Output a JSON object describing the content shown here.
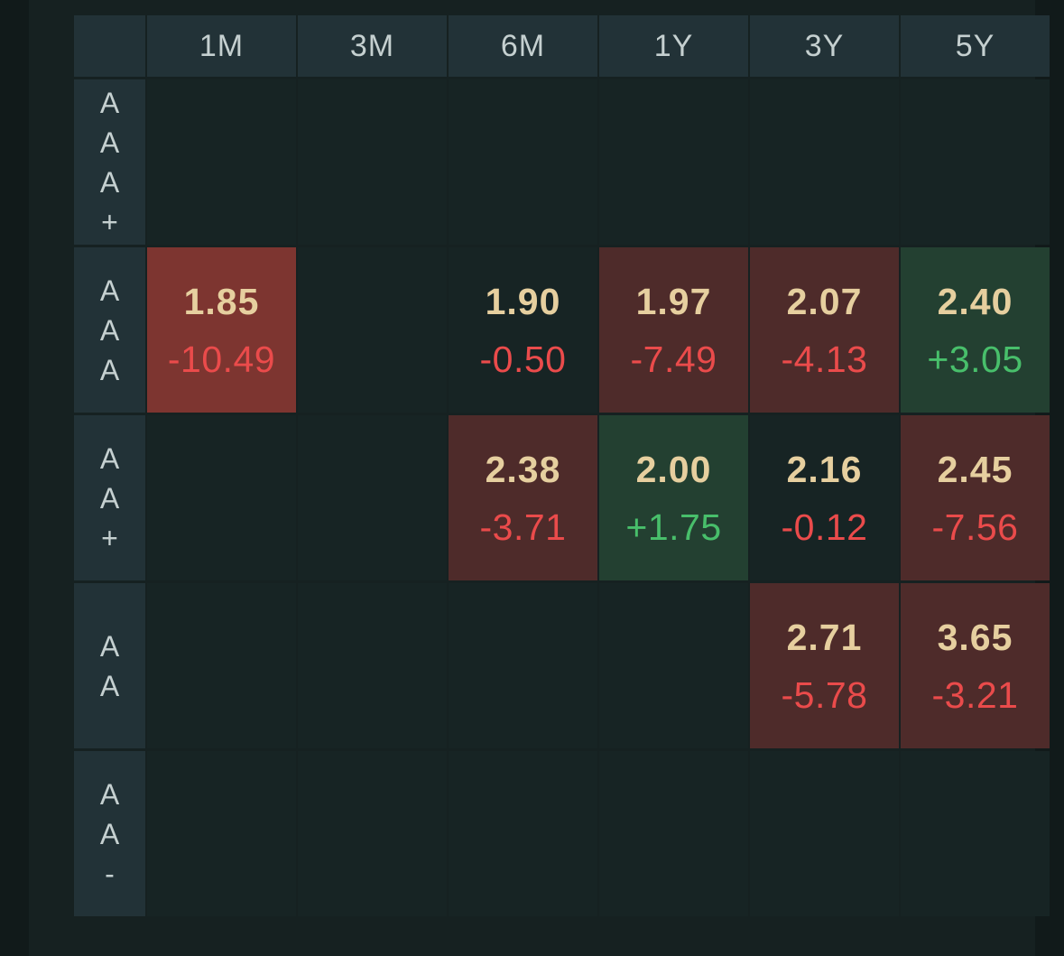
{
  "columns": [
    "1M",
    "3M",
    "6M",
    "1Y",
    "3Y",
    "5Y"
  ],
  "rows": [
    {
      "rating": "AAA+",
      "cells": [
        null,
        null,
        null,
        null,
        null,
        null
      ]
    },
    {
      "rating": "AAA",
      "cells": [
        {
          "value": "1.85",
          "change": "-10.49",
          "tone": "red-strong"
        },
        null,
        {
          "value": "1.90",
          "change": "-0.50",
          "tone": "neutral"
        },
        {
          "value": "1.97",
          "change": "-7.49",
          "tone": "red"
        },
        {
          "value": "2.07",
          "change": "-4.13",
          "tone": "red"
        },
        {
          "value": "2.40",
          "change": "+3.05",
          "tone": "green"
        }
      ]
    },
    {
      "rating": "AA+",
      "cells": [
        null,
        null,
        {
          "value": "2.38",
          "change": "-3.71",
          "tone": "red"
        },
        {
          "value": "2.00",
          "change": "+1.75",
          "tone": "green"
        },
        {
          "value": "2.16",
          "change": "-0.12",
          "tone": "neutral"
        },
        {
          "value": "2.45",
          "change": "-7.56",
          "tone": "red"
        }
      ]
    },
    {
      "rating": "AA",
      "cells": [
        null,
        null,
        null,
        null,
        {
          "value": "2.71",
          "change": "-5.78",
          "tone": "red"
        },
        {
          "value": "3.65",
          "change": "-3.21",
          "tone": "red"
        }
      ]
    },
    {
      "rating": "AA-",
      "cells": [
        null,
        null,
        null,
        null,
        null,
        null
      ]
    }
  ],
  "colors": {
    "positive": "#48bf6b",
    "negative": "#ea4b4b",
    "value": "#e6cf9f",
    "header_bg": "#223237",
    "cell_bg": "#172424"
  }
}
